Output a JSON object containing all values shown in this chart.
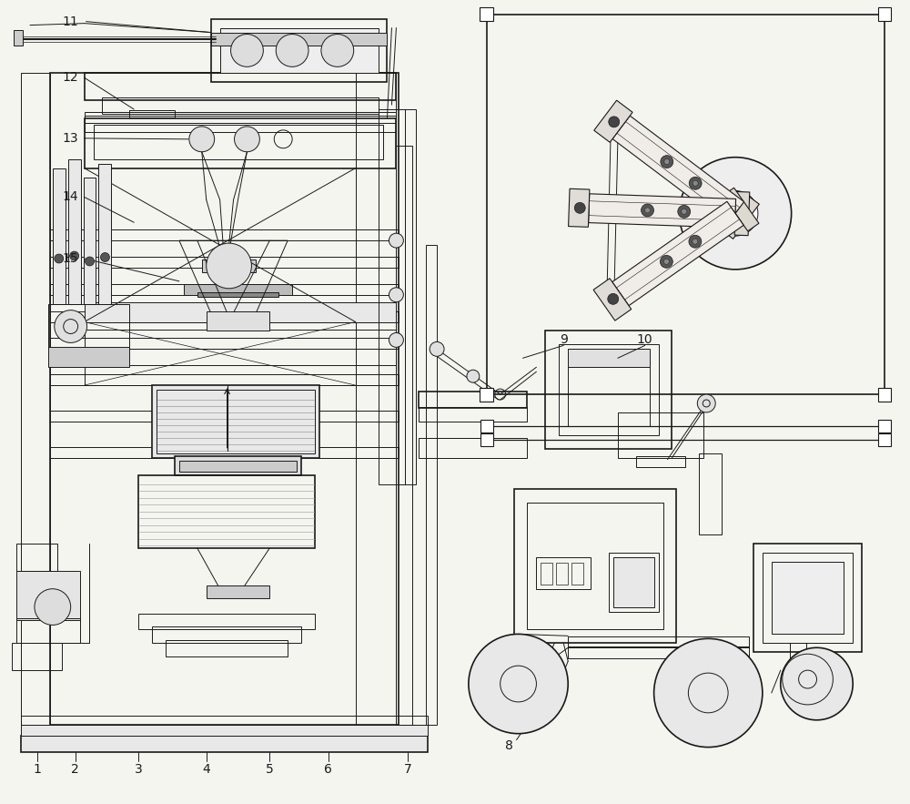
{
  "bg_color": "#f5f5f0",
  "line_color": "#1a1a1a",
  "label_color": "#111111",
  "lw_main": 1.2,
  "lw_thin": 0.7,
  "fig_width": 10.0,
  "fig_height": 8.83
}
